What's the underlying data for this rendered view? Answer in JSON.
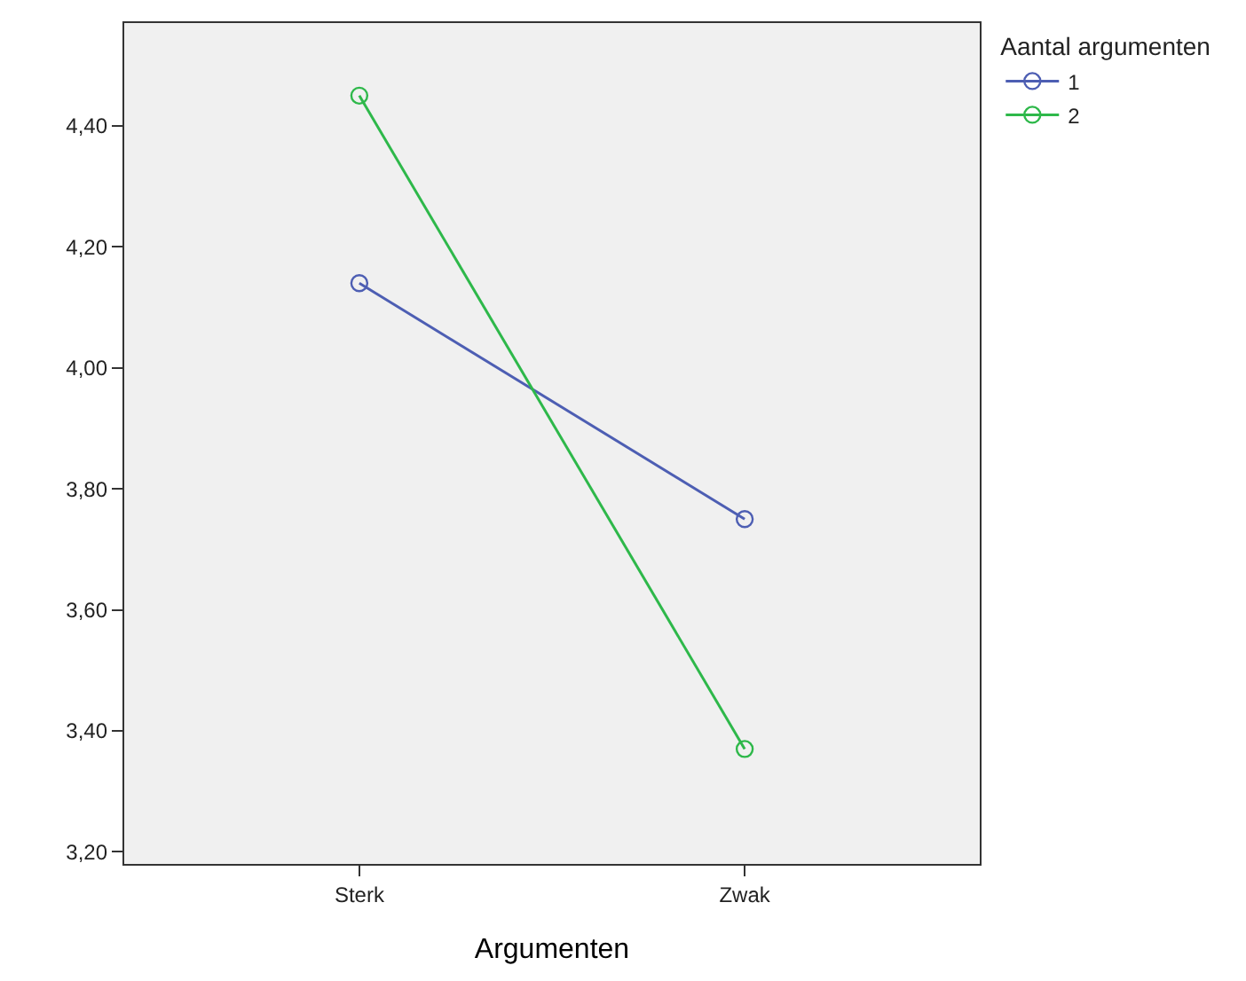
{
  "chart_data": {
    "type": "line",
    "xlabel": "Argumenten",
    "legend_title": "Aantal argumenten",
    "categories": [
      "Sterk",
      "Zwak"
    ],
    "series": [
      {
        "name": "1",
        "color": "#4d5eb3",
        "values": [
          4.14,
          3.75
        ]
      },
      {
        "name": "2",
        "color": "#2eb84a",
        "values": [
          4.45,
          3.37
        ]
      }
    ],
    "ylim": [
      3.18,
      4.57
    ],
    "yticks": [
      {
        "value": 3.2,
        "label": "3,20"
      },
      {
        "value": 3.4,
        "label": "3,40"
      },
      {
        "value": 3.6,
        "label": "3,60"
      },
      {
        "value": 3.8,
        "label": "3,80"
      },
      {
        "value": 4.0,
        "label": "4,00"
      },
      {
        "value": 4.2,
        "label": "4,20"
      },
      {
        "value": 4.4,
        "label": "4,40"
      }
    ],
    "marker": "circle",
    "line_style": "solid",
    "legend": "top right",
    "grid": false
  }
}
